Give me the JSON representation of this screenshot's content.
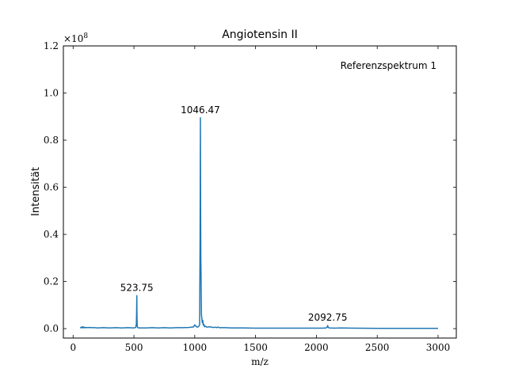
{
  "chart_data": {
    "type": "line",
    "title": "Angiotensin II",
    "xlabel": "m/z",
    "ylabel": "Intensität",
    "y_multiplier_label": "×10",
    "y_multiplier_exponent": "8",
    "xlim": [
      -80,
      3150
    ],
    "ylim": [
      -0.04,
      1.2
    ],
    "xticks": [
      0,
      500,
      1000,
      1500,
      2000,
      2500,
      3000
    ],
    "xtick_labels": [
      "0",
      "500",
      "1000",
      "1500",
      "2000",
      "2500",
      "3000"
    ],
    "yticks": [
      0.0,
      0.2,
      0.4,
      0.6,
      0.8,
      1.0,
      1.2
    ],
    "ytick_labels": [
      "0.0",
      "0.2",
      "0.4",
      "0.6",
      "0.8",
      "1.0",
      "1.2"
    ],
    "grid": false,
    "annotation": "Referenzspektrum 1",
    "peak_labels": [
      {
        "x": 523.75,
        "y": 0.14,
        "text": "523.75"
      },
      {
        "x": 1046.47,
        "y": 0.895,
        "text": "1046.47"
      },
      {
        "x": 2092.75,
        "y": 0.013,
        "text": "2092.75"
      }
    ],
    "series": [
      {
        "x": [
          60,
          65,
          70,
          75,
          80,
          85,
          90,
          95,
          100,
          110,
          120,
          135,
          150,
          175,
          200,
          250,
          300,
          350,
          400,
          450,
          500,
          515,
          520,
          522,
          523.75,
          525,
          527,
          532,
          540,
          600,
          650,
          700,
          750,
          800,
          850,
          900,
          950,
          990,
          1000,
          1010,
          1020,
          1030,
          1040,
          1044,
          1046.47,
          1048,
          1050,
          1052,
          1055,
          1058,
          1062,
          1066,
          1070,
          1075,
          1080,
          1090,
          1100,
          1120,
          1150,
          1170,
          1180,
          1190,
          1200,
          1250,
          1300,
          1400,
          1500,
          1600,
          1700,
          1800,
          1900,
          2000,
          2050,
          2080,
          2088,
          2092.75,
          2096,
          2105,
          2150,
          2200,
          2300,
          2500,
          2700,
          2900,
          3000
        ],
        "y": [
          0.002,
          0.006,
          0.003,
          0.008,
          0.004,
          0.007,
          0.003,
          0.006,
          0.004,
          0.005,
          0.004,
          0.005,
          0.004,
          0.004,
          0.003,
          0.004,
          0.003,
          0.004,
          0.003,
          0.004,
          0.003,
          0.005,
          0.02,
          0.07,
          0.14,
          0.06,
          0.01,
          0.004,
          0.003,
          0.003,
          0.004,
          0.003,
          0.004,
          0.003,
          0.004,
          0.004,
          0.005,
          0.007,
          0.016,
          0.01,
          0.006,
          0.008,
          0.015,
          0.4,
          0.895,
          0.52,
          0.3,
          0.22,
          0.06,
          0.045,
          0.025,
          0.035,
          0.015,
          0.018,
          0.008,
          0.01,
          0.006,
          0.008,
          0.005,
          0.006,
          0.004,
          0.007,
          0.004,
          0.004,
          0.003,
          0.003,
          0.002,
          0.002,
          0.002,
          0.002,
          0.002,
          0.002,
          0.002,
          0.003,
          0.006,
          0.013,
          0.006,
          0.003,
          0.002,
          0.003,
          0.002,
          0.001,
          0.001,
          0.001,
          0.001
        ]
      }
    ]
  }
}
